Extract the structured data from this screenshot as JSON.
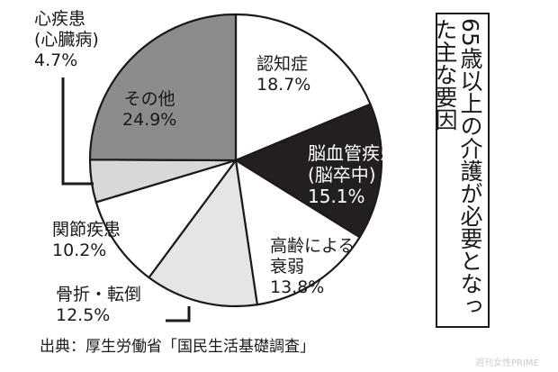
{
  "chart_data": {
    "type": "pie",
    "title": "65歳以上の介護が必要となった主な要因",
    "slices": [
      {
        "label": "認知症",
        "label_lines": [
          "認知症"
        ],
        "value": 18.7,
        "value_text": "18.7%",
        "color": "#ffffff"
      },
      {
        "label": "脳血管疾患(脳卒中)",
        "label_lines": [
          "脳血管疾患",
          "(脳卒中)"
        ],
        "value": 15.1,
        "value_text": "15.1%",
        "color": "#231f20"
      },
      {
        "label": "高齢による衰弱",
        "label_lines": [
          "高齢による",
          "衰弱"
        ],
        "value": 13.8,
        "value_text": "13.8%",
        "color": "#ffffff"
      },
      {
        "label": "骨折・転倒",
        "label_lines": [
          "骨折・転倒"
        ],
        "value": 12.5,
        "value_text": "12.5%",
        "color": "#e5e5e5"
      },
      {
        "label": "関節疾患",
        "label_lines": [
          "関節疾患"
        ],
        "value": 10.2,
        "value_text": "10.2%",
        "color": "#ffffff"
      },
      {
        "label": "心疾患(心臓病)",
        "label_lines": [
          "心疾患",
          "(心臓病)"
        ],
        "value": 4.7,
        "value_text": "4.7%",
        "color": "#d8d8d8"
      },
      {
        "label": "その他",
        "label_lines": [
          "その他"
        ],
        "value": 24.9,
        "value_text": "24.9%",
        "color": "#8c8c8c"
      }
    ],
    "source": "出典：厚生労働省「国民生活基礎調査」"
  },
  "watermark": "週刊女性PRIME"
}
